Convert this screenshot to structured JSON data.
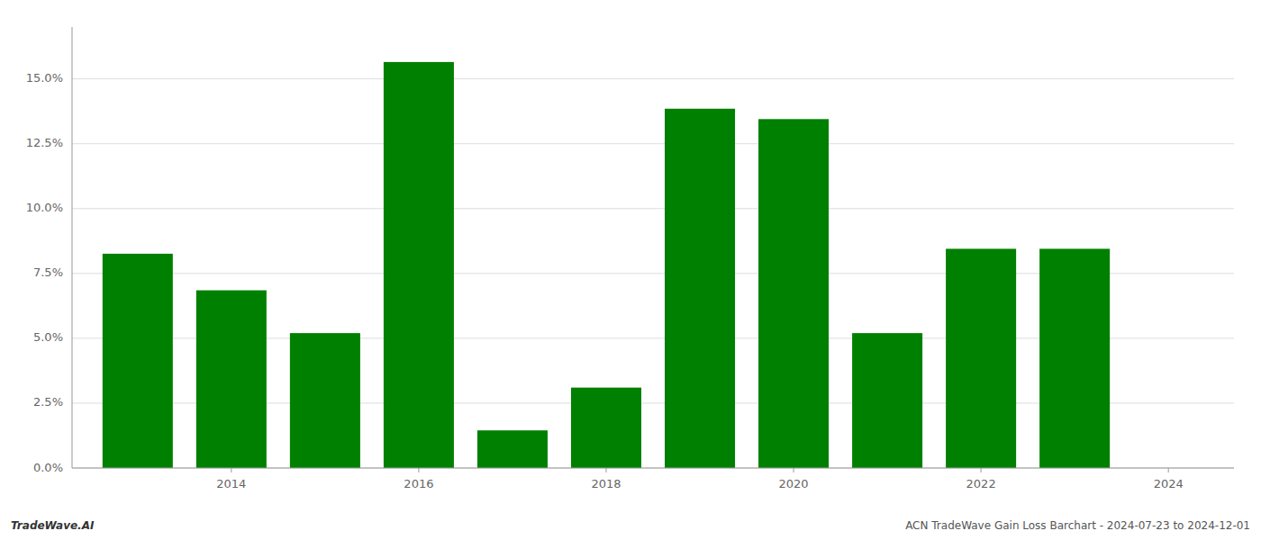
{
  "chart_data": {
    "type": "bar",
    "x": [
      2013,
      2014,
      2015,
      2016,
      2017,
      2018,
      2019,
      2020,
      2021,
      2022,
      2023
    ],
    "values": [
      0.0826,
      0.0685,
      0.052,
      0.1565,
      0.0145,
      0.031,
      0.1385,
      0.1345,
      0.052,
      0.0845,
      0.0845
    ],
    "color": "#008000",
    "xlim": [
      2012.3,
      2024.7
    ],
    "xticks": [
      2014,
      2016,
      2018,
      2020,
      2022,
      2024
    ],
    "ylim": [
      0,
      0.17
    ],
    "yticks": [
      {
        "value": 0.0,
        "label": "0.0%"
      },
      {
        "value": 0.025,
        "label": "2.5%"
      },
      {
        "value": 0.05,
        "label": "5.0%"
      },
      {
        "value": 0.075,
        "label": "7.5%"
      },
      {
        "value": 0.1,
        "label": "10.0%"
      },
      {
        "value": 0.125,
        "label": "12.5%"
      },
      {
        "value": 0.15,
        "label": "15.0%"
      }
    ],
    "grid": true,
    "annotations": [
      "TradeWave.AI",
      "ACN TradeWave Gain Loss Barchart - 2024-07-23 to 2024-12-01"
    ]
  }
}
